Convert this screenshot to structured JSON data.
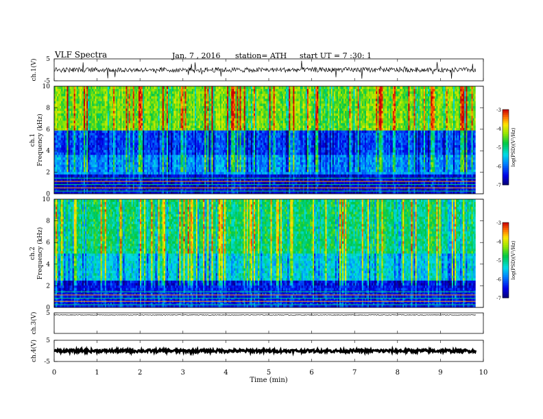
{
  "header": {
    "title": "VLF Spectra",
    "date": "Jan. 7 , 2016",
    "station": "station= ATH",
    "start": "start UT = 7 :30: 1"
  },
  "chart_data": [
    {
      "type": "line",
      "panel": "ch.1 waveform",
      "ylabel": "ch.1(V)",
      "ylim": [
        -5,
        5
      ],
      "yticks": [
        "5",
        "-5"
      ],
      "x_range_min": [
        0,
        9.82
      ],
      "series_description": "noisy amplitude trace centered near 0 V with spikes",
      "color": "#000000"
    },
    {
      "type": "heatmap",
      "panel": "ch.1 spectrogram",
      "ylabel": "ch.1 Frequency (kHz)",
      "ylim": [
        0,
        10
      ],
      "yticks": [
        "0",
        "2",
        "4",
        "6",
        "8",
        "10"
      ],
      "colorbar": {
        "label": "log(PSD)(V²/Hz)",
        "ticks": [
          "-3",
          "-4",
          "-5",
          "-6",
          "-7"
        ],
        "range": [
          -7,
          -3
        ]
      },
      "bands": [
        {
          "from_khz": 0,
          "to_khz": 1.8,
          "level": -6.6
        },
        {
          "from_khz": 1.8,
          "to_khz": 3.6,
          "level": -5.8
        },
        {
          "from_khz": 3.6,
          "to_khz": 6.0,
          "level": -6.2
        },
        {
          "from_khz": 6.0,
          "to_khz": 10,
          "level": -4.4
        }
      ]
    },
    {
      "type": "heatmap",
      "panel": "ch.2 spectrogram",
      "ylabel": "ch.2 Frequency (kHz)",
      "ylim": [
        0,
        10
      ],
      "yticks": [
        "0",
        "2",
        "4",
        "6",
        "8",
        "10"
      ],
      "colorbar": {
        "label": "log(PSD)(V²/Hz)",
        "ticks": [
          "-3",
          "-4",
          "-5",
          "-6",
          "-7"
        ],
        "range": [
          -7,
          -3
        ]
      },
      "bands": [
        {
          "from_khz": 0,
          "to_khz": 2.5,
          "level": -6.4
        },
        {
          "from_khz": 2.5,
          "to_khz": 5.0,
          "level": -5.4
        },
        {
          "from_khz": 5.0,
          "to_khz": 10,
          "level": -4.9
        }
      ]
    },
    {
      "type": "line",
      "panel": "ch.3 waveform",
      "ylabel": "ch.3(V)",
      "ylim": [
        -5,
        5
      ],
      "yticks": [
        "5"
      ],
      "series_description": "flat trace near +4 V"
    },
    {
      "type": "line",
      "panel": "ch.4 waveform",
      "ylabel": "ch.4(V)",
      "ylim": [
        -5,
        5
      ],
      "yticks": [
        "5",
        "-5"
      ],
      "series_description": "pulsed trace near 0 V"
    }
  ],
  "xaxis": {
    "label": "Time (min)",
    "ticks": [
      "0",
      "1",
      "2",
      "3",
      "4",
      "5",
      "6",
      "7",
      "8",
      "9",
      "10"
    ],
    "range": [
      0,
      10
    ]
  }
}
